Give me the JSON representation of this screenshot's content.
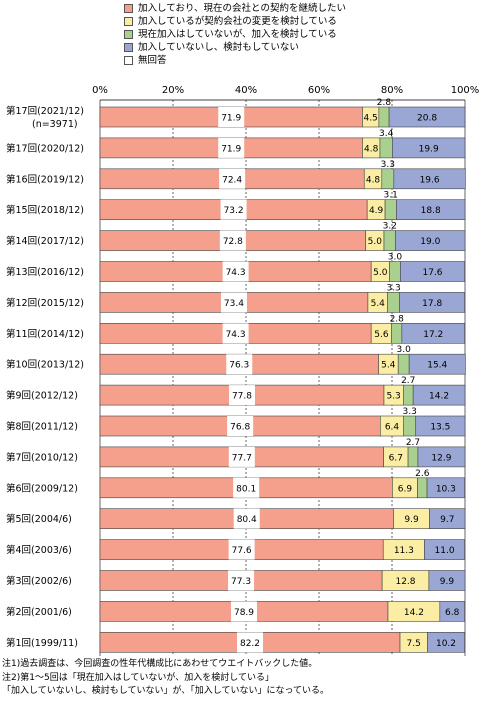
{
  "chart_data": {
    "type": "bar",
    "stacked": true,
    "orientation": "horizontal",
    "xlim": [
      0,
      100
    ],
    "x_ticks": [
      "0%",
      "20%",
      "40%",
      "60%",
      "80%",
      "100%"
    ],
    "legend_position": "top",
    "series": [
      {
        "name": "加入しており、現在の会社との契約を継続したい",
        "color": "#f4a08c",
        "values": [
          71.9,
          71.9,
          72.4,
          73.2,
          72.8,
          74.3,
          73.4,
          74.3,
          76.3,
          77.8,
          76.8,
          77.7,
          80.1,
          80.4,
          77.6,
          77.3,
          78.9,
          82.2
        ]
      },
      {
        "name": "加入しているが契約会社の変更を検討している",
        "color": "#fbeea4",
        "values": [
          4.5,
          4.8,
          4.8,
          4.9,
          5.0,
          5.0,
          5.4,
          5.6,
          5.4,
          5.3,
          6.4,
          6.7,
          6.9,
          9.9,
          11.3,
          12.8,
          14.2,
          7.5
        ]
      },
      {
        "name": "現在加入はしていないが、加入を検討している",
        "color": "#a9d08e",
        "values": [
          2.8,
          3.4,
          3.3,
          3.1,
          3.2,
          3.0,
          3.3,
          2.8,
          3.0,
          2.7,
          3.3,
          2.7,
          2.6,
          null,
          null,
          null,
          null,
          null
        ]
      },
      {
        "name": "加入していないし、検討もしていない",
        "color": "#9aa6d4",
        "values": [
          20.8,
          19.9,
          19.6,
          18.8,
          19.0,
          17.6,
          17.8,
          17.2,
          15.4,
          14.2,
          13.5,
          12.9,
          10.3,
          9.7,
          11.0,
          9.9,
          6.8,
          10.2
        ]
      },
      {
        "name": "無回答",
        "color": "#ffffff",
        "values": [
          null,
          null,
          null,
          null,
          null,
          null,
          null,
          null,
          null,
          null,
          null,
          null,
          null,
          null,
          null,
          null,
          null,
          null
        ]
      }
    ],
    "categories": [
      {
        "label": "第17回(2021/12)",
        "sublabel": "(n=3971)"
      },
      {
        "label": "第17回(2020/12)",
        "sublabel": ""
      },
      {
        "label": "第16回(2019/12)",
        "sublabel": ""
      },
      {
        "label": "第15回(2018/12)",
        "sublabel": ""
      },
      {
        "label": "第14回(2017/12)",
        "sublabel": ""
      },
      {
        "label": "第13回(2016/12)",
        "sublabel": ""
      },
      {
        "label": "第12回(2015/12)",
        "sublabel": ""
      },
      {
        "label": "第11回(2014/12)",
        "sublabel": ""
      },
      {
        "label": "第10回(2013/12)",
        "sublabel": ""
      },
      {
        "label": "第9回(2012/12)",
        "sublabel": ""
      },
      {
        "label": "第8回(2011/12)",
        "sublabel": ""
      },
      {
        "label": "第7回(2010/12)",
        "sublabel": ""
      },
      {
        "label": "第6回(2009/12)",
        "sublabel": ""
      },
      {
        "label": "第5回(2004/6)",
        "sublabel": ""
      },
      {
        "label": "第4回(2003/6)",
        "sublabel": ""
      },
      {
        "label": "第3回(2002/6)",
        "sublabel": ""
      },
      {
        "label": "第2回(2001/6)",
        "sublabel": ""
      },
      {
        "label": "第1回(1999/11)",
        "sublabel": ""
      }
    ]
  },
  "notes": [
    "注1)過去調査は、今回調査の性年代構成比にあわせてウエイトバックした値。",
    "注2)第1～5回は「現在加入はしていないが、加入を検討している」",
    "「加入していないし、検討もしていない」が、「加入していない」になっている。"
  ]
}
